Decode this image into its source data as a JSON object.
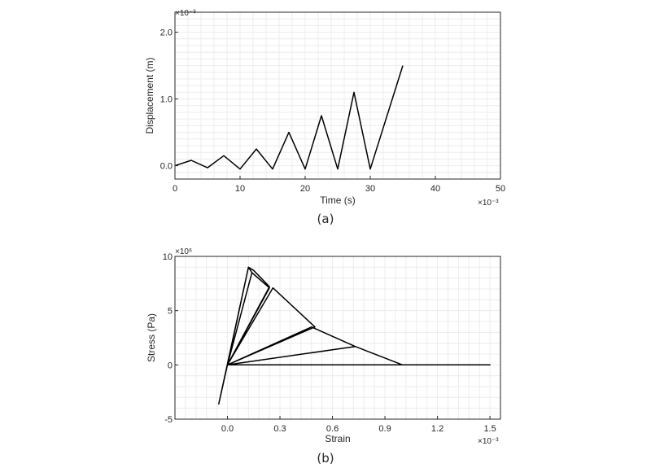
{
  "chart_data": [
    {
      "type": "line",
      "caption": "(a)",
      "xlabel": "Time (s)",
      "ylabel": "Displacement (m)",
      "x_multiplier": "×10⁻³",
      "y_multiplier": "×10⁻³",
      "xlim": [
        0,
        50
      ],
      "ylim": [
        -0.2,
        2.3
      ],
      "xticks": [
        0,
        10,
        20,
        30,
        40,
        50
      ],
      "xtick_labels": [
        "0",
        "10",
        "20",
        "30",
        "40",
        "50"
      ],
      "yticks": [
        0,
        1,
        2
      ],
      "ytick_labels": [
        "0.0",
        "1.0",
        "2.0"
      ],
      "grid": true,
      "series": [
        {
          "x": [
            0,
            2.5,
            5,
            7.5,
            10,
            12.5,
            15,
            17.5,
            20,
            22.5,
            25,
            27.5,
            30,
            35
          ],
          "y": [
            0,
            0.08,
            -0.03,
            0.15,
            -0.05,
            0.25,
            -0.05,
            0.5,
            -0.05,
            0.75,
            -0.05,
            1.1,
            -0.05,
            1.5
          ],
          "color": "#000000"
        }
      ]
    },
    {
      "type": "line",
      "caption": "(b)",
      "xlabel": "Strain",
      "ylabel": "Stress (Pa)",
      "x_multiplier": "×10⁻³",
      "y_multiplier": "×10⁶",
      "xlim": [
        -0.3,
        1.56
      ],
      "ylim": [
        -5,
        10
      ],
      "xticks": [
        0,
        0.3,
        0.6,
        0.9,
        1.2,
        1.5
      ],
      "xtick_labels": [
        "0.0",
        "0.3",
        "0.6",
        "0.9",
        "1.2",
        "1.5"
      ],
      "yticks": [
        -5,
        0,
        5,
        10
      ],
      "ytick_labels": [
        "-5",
        "0",
        "5",
        "10"
      ],
      "grid": true,
      "series": [
        {
          "x": [
            -0.05,
            0.12,
            0.15,
            0.24,
            0.0,
            0.26,
            0.5,
            0.0,
            0.48,
            0.73,
            0.0,
            0.73,
            1.0,
            1.5,
            0.0,
            -0.05,
            0.0,
            0.14,
            0.24,
            0.0,
            0.14,
            0.12,
            0.0
          ],
          "y": [
            -3.6,
            9.0,
            8.7,
            7.2,
            0.0,
            7.1,
            3.5,
            0.0,
            3.5,
            1.7,
            0.0,
            1.7,
            0.0,
            0.0,
            0.0,
            -3.6,
            0.0,
            8.5,
            7.1,
            0.0,
            8.5,
            9.0,
            0.0
          ],
          "color": "#000000"
        }
      ]
    }
  ]
}
